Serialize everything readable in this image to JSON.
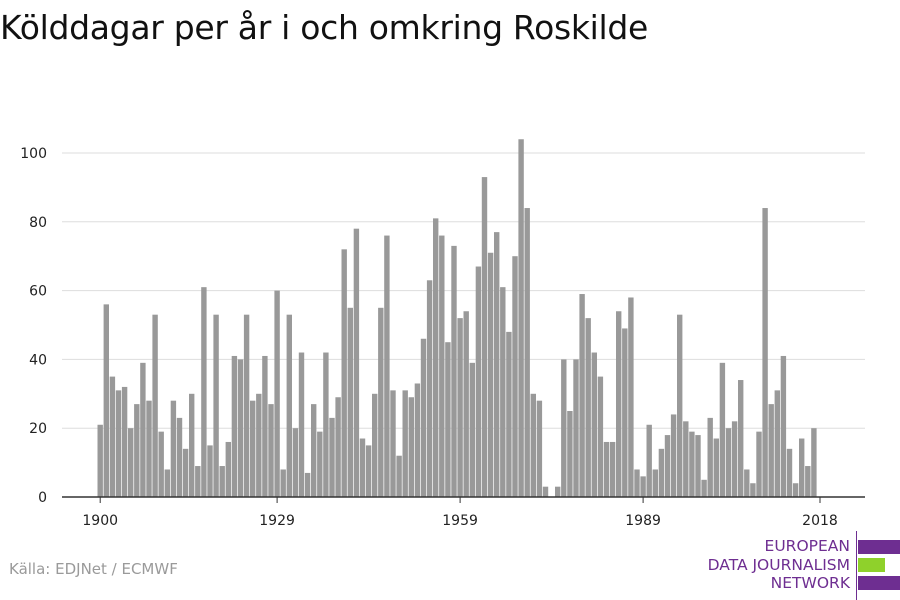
{
  "title": "Kölddagar per år i och omkring Roskilde",
  "source": "Källa: EDJNet / ECMWF",
  "logo": {
    "line1": "EUROPEAN",
    "line2": "DATA JOURNALISM",
    "line3": "NETWORK",
    "colors": {
      "purple": "#6e2e91",
      "green": "#8fd12b"
    }
  },
  "colors": {
    "bar": "#999999",
    "grid": "#dddddd",
    "axis": "#333333",
    "text": "#222222"
  },
  "chart_data": {
    "type": "bar",
    "title": "Kölddagar per år i och omkring Roskilde",
    "xlabel": "",
    "ylabel": "",
    "ylim": [
      0,
      104
    ],
    "yticks": [
      0,
      20,
      40,
      60,
      80,
      100
    ],
    "xticks": [
      1900,
      1929,
      1959,
      1989,
      2018
    ],
    "grid": true,
    "x": [
      1900,
      1901,
      1902,
      1903,
      1904,
      1905,
      1906,
      1907,
      1908,
      1909,
      1910,
      1911,
      1912,
      1913,
      1914,
      1915,
      1916,
      1917,
      1918,
      1919,
      1920,
      1921,
      1922,
      1923,
      1924,
      1925,
      1926,
      1927,
      1928,
      1929,
      1930,
      1931,
      1932,
      1933,
      1934,
      1935,
      1936,
      1937,
      1938,
      1939,
      1940,
      1941,
      1942,
      1943,
      1944,
      1945,
      1946,
      1947,
      1948,
      1949,
      1950,
      1951,
      1952,
      1953,
      1954,
      1955,
      1956,
      1957,
      1958,
      1959,
      1960,
      1961,
      1962,
      1963,
      1964,
      1965,
      1966,
      1967,
      1968,
      1969,
      1970,
      1971,
      1972,
      1973,
      1974,
      1975,
      1976,
      1977,
      1978,
      1979,
      1980,
      1981,
      1982,
      1983,
      1984,
      1985,
      1986,
      1987,
      1988,
      1989,
      1990,
      1991,
      1992,
      1993,
      1994,
      1995,
      1996,
      1997,
      1998,
      1999,
      2000,
      2001,
      2002,
      2003,
      2004,
      2005,
      2006,
      2007,
      2008,
      2009,
      2010,
      2011,
      2012,
      2013,
      2014,
      2015,
      2016,
      2017,
      2018
    ],
    "values": [
      21,
      56,
      35,
      31,
      32,
      20,
      27,
      39,
      28,
      53,
      19,
      8,
      28,
      23,
      14,
      30,
      9,
      61,
      15,
      53,
      9,
      16,
      41,
      40,
      53,
      28,
      30,
      41,
      27,
      60,
      8,
      53,
      20,
      42,
      7,
      27,
      19,
      42,
      23,
      29,
      72,
      55,
      78,
      17,
      15,
      30,
      55,
      76,
      31,
      12,
      31,
      29,
      33,
      46,
      63,
      81,
      76,
      45,
      73,
      52,
      54,
      39,
      67,
      93,
      71,
      77,
      61,
      48,
      70,
      104,
      84,
      30,
      28,
      3,
      0,
      3,
      40,
      25,
      40,
      59,
      52,
      42,
      35,
      16,
      16,
      54,
      49,
      58,
      8,
      6,
      21,
      8,
      14,
      18,
      24,
      53,
      22,
      19,
      18,
      5,
      23,
      17,
      39,
      20,
      22,
      34,
      8,
      4,
      19,
      84,
      27,
      31,
      41,
      14,
      4,
      17,
      9,
      20,
      0
    ]
  }
}
